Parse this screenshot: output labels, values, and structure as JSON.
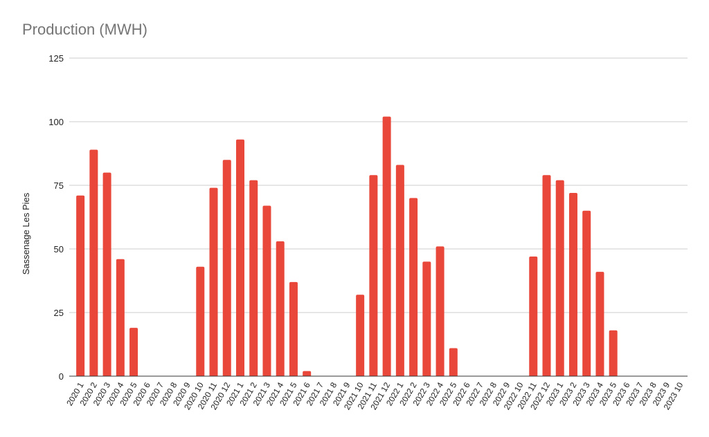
{
  "chart_data": {
    "type": "bar",
    "title": "Production (MWH)",
    "xlabel": "",
    "ylabel": "Sassenage Les Pies",
    "ylim": [
      0,
      125
    ],
    "yticks": [
      0,
      25,
      50,
      75,
      100,
      125
    ],
    "grid": true,
    "legend": "none",
    "bar_color": "#e8473a",
    "categories": [
      "2020 1",
      "2020 2",
      "2020 3",
      "2020 4",
      "2020 5",
      "2020 6",
      "2020 7",
      "2020 8",
      "2020 9",
      "2020 10",
      "2020 11",
      "2020 12",
      "2021 1",
      "2021 2",
      "2021 3",
      "2021 4",
      "2021 5",
      "2021 6",
      "2021 7",
      "2021 8",
      "2021 9",
      "2021 10",
      "2021 11",
      "2021 12",
      "2022 1",
      "2022 2",
      "2022 3",
      "2022 4",
      "2022 5",
      "2022 6",
      "2022 7",
      "2022 8",
      "2022 9",
      "2022 10",
      "2022 11",
      "2022 12",
      "2023 1",
      "2023 2",
      "2023 3",
      "2023 4",
      "2023 5",
      "2023 6",
      "2023 7",
      "2023 8",
      "2023 9",
      "2023 10"
    ],
    "values": [
      71,
      89,
      80,
      46,
      19,
      0,
      0,
      0,
      0,
      43,
      74,
      85,
      93,
      77,
      67,
      53,
      37,
      2,
      0,
      0,
      0,
      32,
      79,
      102,
      83,
      70,
      45,
      51,
      11,
      0,
      0,
      0,
      0,
      0,
      47,
      79,
      77,
      72,
      65,
      41,
      18,
      0,
      0,
      0,
      0,
      0
    ]
  }
}
